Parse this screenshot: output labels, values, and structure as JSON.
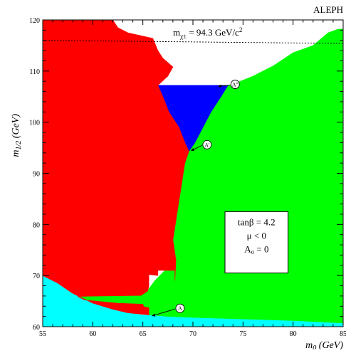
{
  "chart_data": {
    "type": "area",
    "title": "ALEPH",
    "xlabel": "m₀ (GeV)",
    "ylabel": "m1/2 (GeV)",
    "xlim": [
      55,
      85
    ],
    "ylim": [
      60,
      120
    ],
    "x_ticks": [
      55,
      60,
      65,
      70,
      75,
      80,
      85
    ],
    "y_ticks": [
      60,
      70,
      80,
      90,
      100,
      110,
      120
    ],
    "grid": false,
    "regions": [
      {
        "color": "#00ffff",
        "points": [
          [
            55,
            70
          ],
          [
            56.5,
            68.5
          ],
          [
            58,
            66.5
          ],
          [
            60,
            64.6
          ],
          [
            62,
            63.4
          ],
          [
            63.5,
            62.7
          ],
          [
            65,
            62.3
          ],
          [
            67.5,
            62
          ],
          [
            70,
            61.8
          ],
          [
            75,
            61.5
          ],
          [
            80,
            61.2
          ],
          [
            83,
            60.9
          ],
          [
            85,
            60.7
          ],
          [
            85,
            60
          ],
          [
            55,
            60
          ]
        ]
      },
      {
        "color": "#00ff00",
        "points": [
          [
            85,
            60.7
          ],
          [
            83,
            60.9
          ],
          [
            80,
            61.2
          ],
          [
            75,
            61.5
          ],
          [
            70,
            61.8
          ],
          [
            67.5,
            62
          ],
          [
            65.6,
            62.3
          ],
          [
            65.6,
            63.7
          ],
          [
            65.1,
            63.9
          ],
          [
            65,
            64.4
          ],
          [
            62.5,
            64.6
          ],
          [
            59.2,
            65.2
          ],
          [
            58.5,
            65.9
          ],
          [
            61,
            66
          ],
          [
            64.8,
            66.1
          ],
          [
            65.5,
            67
          ],
          [
            65.6,
            67.4
          ],
          [
            66.2,
            69
          ],
          [
            67.2,
            71
          ],
          [
            67.4,
            75
          ],
          [
            68,
            80
          ],
          [
            68.5,
            85
          ],
          [
            69,
            90
          ],
          [
            69.4,
            94
          ],
          [
            70,
            96
          ],
          [
            70.5,
            100
          ],
          [
            71,
            103
          ],
          [
            72,
            106
          ],
          [
            73.3,
            107
          ],
          [
            74.1,
            107.5
          ],
          [
            76,
            109
          ],
          [
            78,
            111
          ],
          [
            80,
            113.6
          ],
          [
            82,
            115
          ],
          [
            83.5,
            117.5
          ],
          [
            84.5,
            118.2
          ],
          [
            85,
            118.2
          ]
        ]
      },
      {
        "color": "#0000ff",
        "points": [
          [
            66.5,
            107.2
          ],
          [
            73.5,
            107.2
          ],
          [
            72.8,
            105
          ],
          [
            71.8,
            102
          ],
          [
            71,
            99
          ],
          [
            70.2,
            96
          ],
          [
            69.6,
            94.3
          ],
          [
            69.2,
            96
          ],
          [
            68.6,
            99
          ],
          [
            67.6,
            102
          ],
          [
            67,
            105
          ]
        ]
      },
      {
        "color": "#ff0000",
        "points": [
          [
            55,
            70
          ],
          [
            56.5,
            68.5
          ],
          [
            58,
            66.5
          ],
          [
            60,
            64.6
          ],
          [
            62,
            63.4
          ],
          [
            63.5,
            62.7
          ],
          [
            65.6,
            62.3
          ],
          [
            65.6,
            63.7
          ],
          [
            65.1,
            63.9
          ],
          [
            65,
            64.4
          ],
          [
            62.5,
            64.6
          ],
          [
            59.2,
            65.2
          ],
          [
            58.5,
            65.9
          ],
          [
            61,
            66
          ],
          [
            64.8,
            66.1
          ],
          [
            65.5,
            67
          ],
          [
            65.6,
            68
          ],
          [
            65.6,
            70.2
          ],
          [
            66.5,
            70
          ],
          [
            66.5,
            71
          ],
          [
            68.2,
            71
          ],
          [
            68.2,
            69
          ],
          [
            68.3,
            73
          ],
          [
            68,
            77
          ],
          [
            68.4,
            82
          ],
          [
            68.8,
            87
          ],
          [
            69.2,
            92
          ],
          [
            69.6,
            94.3
          ],
          [
            69.2,
            96
          ],
          [
            68.6,
            99
          ],
          [
            67.6,
            102
          ],
          [
            67,
            105
          ],
          [
            66.5,
            107.2
          ],
          [
            67.5,
            109
          ],
          [
            68,
            110.8
          ],
          [
            67,
            112.5
          ],
          [
            66.5,
            114
          ],
          [
            66,
            116.4
          ],
          [
            63.5,
            117.5
          ],
          [
            62.5,
            118.5
          ],
          [
            62,
            120
          ],
          [
            55,
            120
          ]
        ]
      }
    ],
    "dashed_line": {
      "x": [
        55,
        85
      ],
      "y": [
        116,
        115.4
      ]
    },
    "annotations": {
      "mass_limit": "m",
      "mass_sub": "χ±",
      "mass_value": "= 94.3 GeV/c",
      "mass_exp": "2",
      "params": [
        "tanβ = 4.2",
        "μ < 0",
        "A₀ = 0"
      ],
      "point_labels": [
        {
          "text": "A",
          "x": 68.5,
          "y": 63.6,
          "tip_x": 65.9,
          "tip_y": 62.1
        },
        {
          "text": "A'",
          "x": 71.2,
          "y": 95.6,
          "tip_x": 69.8,
          "tip_y": 94.4
        },
        {
          "text": "A\"",
          "x": 74,
          "y": 107.4,
          "tip_x": 72.5,
          "tip_y": 107
        }
      ]
    }
  }
}
